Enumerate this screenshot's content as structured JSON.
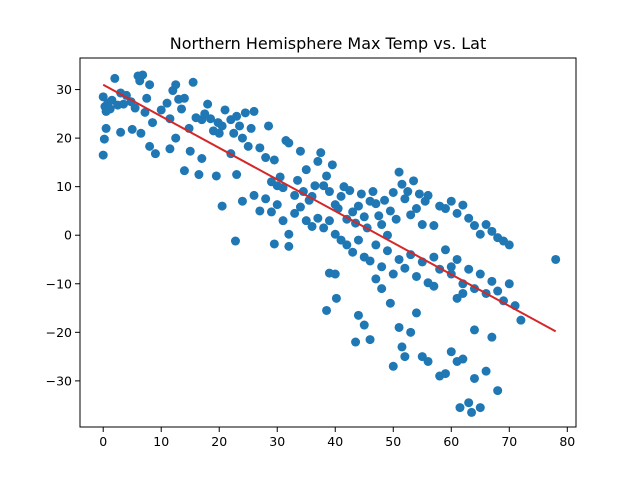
{
  "chart_data": {
    "type": "scatter",
    "title": "Northern Hemisphere Max Temp vs. Lat",
    "xlabel": "",
    "ylabel": "",
    "xlim": [
      -4,
      81.5
    ],
    "ylim": [
      -39.5,
      36.5
    ],
    "x_ticks": [
      0,
      10,
      20,
      30,
      40,
      50,
      60,
      70,
      80
    ],
    "y_ticks": [
      -30,
      -20,
      -10,
      0,
      10,
      20,
      30
    ],
    "grid": false,
    "legend": "none",
    "colors": {
      "points": "#1f77b4",
      "regression": "#d62728"
    },
    "regression_line": {
      "x": [
        0,
        78
      ],
      "y": [
        31,
        -19.8
      ]
    },
    "series": [
      {
        "points": [
          [
            0,
            28.5
          ],
          [
            0.3,
            26.5
          ],
          [
            0.5,
            25.5
          ],
          [
            0.8,
            27.2
          ],
          [
            1.2,
            26.0
          ],
          [
            1.5,
            27.8
          ],
          [
            2.0,
            32.3
          ],
          [
            2.5,
            26.8
          ],
          [
            3.0,
            29.3
          ],
          [
            3.5,
            27.0
          ],
          [
            4.0,
            28.8
          ],
          [
            4.8,
            27.5
          ],
          [
            5.5,
            26.2
          ],
          [
            6.0,
            32.8
          ],
          [
            6.3,
            31.8
          ],
          [
            6.8,
            33.0
          ],
          [
            7.2,
            25.3
          ],
          [
            7.5,
            28.2
          ],
          [
            8.0,
            31.0
          ],
          [
            8.5,
            23.2
          ],
          [
            10.0,
            25.8
          ],
          [
            11.0,
            27.2
          ],
          [
            11.5,
            24.0
          ],
          [
            12.0,
            29.8
          ],
          [
            12.5,
            31.0
          ],
          [
            13.0,
            28.0
          ],
          [
            13.5,
            26.0
          ],
          [
            14.0,
            28.2
          ],
          [
            14.8,
            22.0
          ],
          [
            15.5,
            31.5
          ],
          [
            16.0,
            24.2
          ],
          [
            17.0,
            23.8
          ],
          [
            17.5,
            25.0
          ],
          [
            18.0,
            27.0
          ],
          [
            18.5,
            24.0
          ],
          [
            19.0,
            21.5
          ],
          [
            19.8,
            23.2
          ],
          [
            20.0,
            21.0
          ],
          [
            20.5,
            22.5
          ],
          [
            21.0,
            25.8
          ],
          [
            22.0,
            23.8
          ],
          [
            22.5,
            21.0
          ],
          [
            23.0,
            24.5
          ],
          [
            23.5,
            22.5
          ],
          [
            24.0,
            20.0
          ],
          [
            24.5,
            25.2
          ],
          [
            25.0,
            18.3
          ],
          [
            25.5,
            22.0
          ],
          [
            26.0,
            25.5
          ],
          [
            27.0,
            18.0
          ],
          [
            28.0,
            16.0
          ],
          [
            28.5,
            22.5
          ],
          [
            29.0,
            11.0
          ],
          [
            29.5,
            15.5
          ],
          [
            30.0,
            10.2
          ],
          [
            30.5,
            12.0
          ],
          [
            31.0,
            9.8
          ],
          [
            31.5,
            19.5
          ],
          [
            32.0,
            19.0
          ],
          [
            33.0,
            8.2
          ],
          [
            33.5,
            11.3
          ],
          [
            34.0,
            17.3
          ],
          [
            34.5,
            9.0
          ],
          [
            35.0,
            13.5
          ],
          [
            35.5,
            7.2
          ],
          [
            36.0,
            8.0
          ],
          [
            36.5,
            10.2
          ],
          [
            37.0,
            15.2
          ],
          [
            37.5,
            17.0
          ],
          [
            38.0,
            10.2
          ],
          [
            38.5,
            12.2
          ],
          [
            39.0,
            9.0
          ],
          [
            39.5,
            14.5
          ],
          [
            40.0,
            6.3
          ],
          [
            40.5,
            5.5
          ],
          [
            41.0,
            8.0
          ],
          [
            41.5,
            10.0
          ],
          [
            42.0,
            3.3
          ],
          [
            42.5,
            9.2
          ],
          [
            43.0,
            4.8
          ],
          [
            43.5,
            2.5
          ],
          [
            44.0,
            6.0
          ],
          [
            44.5,
            8.5
          ],
          [
            45.0,
            3.8
          ],
          [
            45.5,
            1.5
          ],
          [
            46.0,
            7.0
          ],
          [
            46.5,
            9.0
          ],
          [
            47.0,
            6.5
          ],
          [
            47.5,
            4.0
          ],
          [
            48.0,
            2.2
          ],
          [
            48.5,
            7.2
          ],
          [
            49.0,
            0.0
          ],
          [
            49.5,
            5.0
          ],
          [
            50.0,
            8.8
          ],
          [
            50.5,
            3.3
          ],
          [
            51.0,
            13.0
          ],
          [
            51.5,
            10.5
          ],
          [
            52.0,
            7.5
          ],
          [
            52.5,
            9.0
          ],
          [
            53.0,
            4.2
          ],
          [
            53.5,
            11.2
          ],
          [
            54.0,
            5.5
          ],
          [
            54.5,
            8.5
          ],
          [
            55.0,
            2.2
          ],
          [
            55.5,
            7.0
          ],
          [
            56.0,
            8.2
          ],
          [
            57.0,
            2.0
          ],
          [
            58.0,
            6.0
          ],
          [
            59.0,
            5.5
          ],
          [
            60.0,
            7.0
          ],
          [
            61.0,
            4.5
          ],
          [
            62.0,
            6.2
          ],
          [
            63.0,
            3.5
          ],
          [
            64.0,
            2.0
          ],
          [
            65.0,
            0.2
          ],
          [
            66.0,
            2.2
          ],
          [
            67.0,
            0.8
          ],
          [
            68.0,
            -0.5
          ],
          [
            69.0,
            -1.2
          ],
          [
            70.0,
            -2.0
          ],
          [
            0,
            16.5
          ],
          [
            0.2,
            19.8
          ],
          [
            0.5,
            22.0
          ],
          [
            3.0,
            21.2
          ],
          [
            5.0,
            21.8
          ],
          [
            6.5,
            21.0
          ],
          [
            8.0,
            18.3
          ],
          [
            9.0,
            16.8
          ],
          [
            11.5,
            17.8
          ],
          [
            12.5,
            20.0
          ],
          [
            14.0,
            13.3
          ],
          [
            15.0,
            17.3
          ],
          [
            16.5,
            12.5
          ],
          [
            17.0,
            15.8
          ],
          [
            19.5,
            12.2
          ],
          [
            20.5,
            6.0
          ],
          [
            22.0,
            16.8
          ],
          [
            23.0,
            12.5
          ],
          [
            24.0,
            7.0
          ],
          [
            26.0,
            8.2
          ],
          [
            27.0,
            5.0
          ],
          [
            28.0,
            7.5
          ],
          [
            29.0,
            4.8
          ],
          [
            30.0,
            6.3
          ],
          [
            31.0,
            3.0
          ],
          [
            32.0,
            0.2
          ],
          [
            33.0,
            4.5
          ],
          [
            34.0,
            5.8
          ],
          [
            35.0,
            3.0
          ],
          [
            36.0,
            1.8
          ],
          [
            37.0,
            3.5
          ],
          [
            38.0,
            1.5
          ],
          [
            39.0,
            3.0
          ],
          [
            40.0,
            0.2
          ],
          [
            41.0,
            -1.0
          ],
          [
            42.0,
            -2.0
          ],
          [
            43.0,
            -3.5
          ],
          [
            44.0,
            -1.0
          ],
          [
            45.0,
            -4.5
          ],
          [
            46.0,
            -5.3
          ],
          [
            47.0,
            -2.0
          ],
          [
            48.0,
            -6.5
          ],
          [
            49.0,
            -3.2
          ],
          [
            50.0,
            -8.0
          ],
          [
            51.0,
            -5.0
          ],
          [
            52.0,
            -6.8
          ],
          [
            53.0,
            -4.0
          ],
          [
            54.0,
            -8.5
          ],
          [
            55.0,
            -5.5
          ],
          [
            56.0,
            -9.8
          ],
          [
            57.0,
            -4.5
          ],
          [
            58.0,
            -7.0
          ],
          [
            59.0,
            -3.0
          ],
          [
            60.0,
            -8.0
          ],
          [
            61.0,
            -5.0
          ],
          [
            62.0,
            -10.0
          ],
          [
            63.0,
            -7.0
          ],
          [
            64.0,
            -11.0
          ],
          [
            65.0,
            -8.0
          ],
          [
            66.0,
            -12.0
          ],
          [
            67.0,
            -9.5
          ],
          [
            68.0,
            -11.5
          ],
          [
            69.0,
            -13.5
          ],
          [
            70.0,
            -10.0
          ],
          [
            71.0,
            -14.5
          ],
          [
            72.0,
            -17.5
          ],
          [
            78.0,
            -5.0
          ],
          [
            22.8,
            -1.2
          ],
          [
            29.5,
            -1.8
          ],
          [
            32.0,
            -2.3
          ],
          [
            38.5,
            -15.5
          ],
          [
            39.0,
            -7.8
          ],
          [
            40.0,
            -8.0
          ],
          [
            40.2,
            -13.0
          ],
          [
            43.5,
            -22.0
          ],
          [
            44.0,
            -16.5
          ],
          [
            45.0,
            -18.5
          ],
          [
            46.0,
            -21.5
          ],
          [
            47.0,
            -9.0
          ],
          [
            48.0,
            -11.0
          ],
          [
            49.5,
            -14.0
          ],
          [
            50.0,
            -27.0
          ],
          [
            51.0,
            -19.0
          ],
          [
            51.5,
            -23.0
          ],
          [
            52.0,
            -25.0
          ],
          [
            53.0,
            -20.0
          ],
          [
            54.0,
            -16.0
          ],
          [
            55.0,
            -25.0
          ],
          [
            56.0,
            -26.0
          ],
          [
            57.0,
            -10.5
          ],
          [
            58.0,
            -29.0
          ],
          [
            59.0,
            -28.5
          ],
          [
            60.0,
            -24.0
          ],
          [
            61.0,
            -26.0
          ],
          [
            61.5,
            -35.5
          ],
          [
            62.0,
            -25.5
          ],
          [
            63.0,
            -34.5
          ],
          [
            63.5,
            -36.5
          ],
          [
            64.0,
            -29.5
          ],
          [
            65.0,
            -35.5
          ],
          [
            66.0,
            -28.0
          ],
          [
            67.0,
            -21.0
          ],
          [
            68.0,
            -32.0
          ],
          [
            64.0,
            -19.5
          ],
          [
            61.0,
            -13.0
          ],
          [
            62.0,
            -12.0
          ],
          [
            60.0,
            -6.5
          ]
        ]
      }
    ]
  }
}
